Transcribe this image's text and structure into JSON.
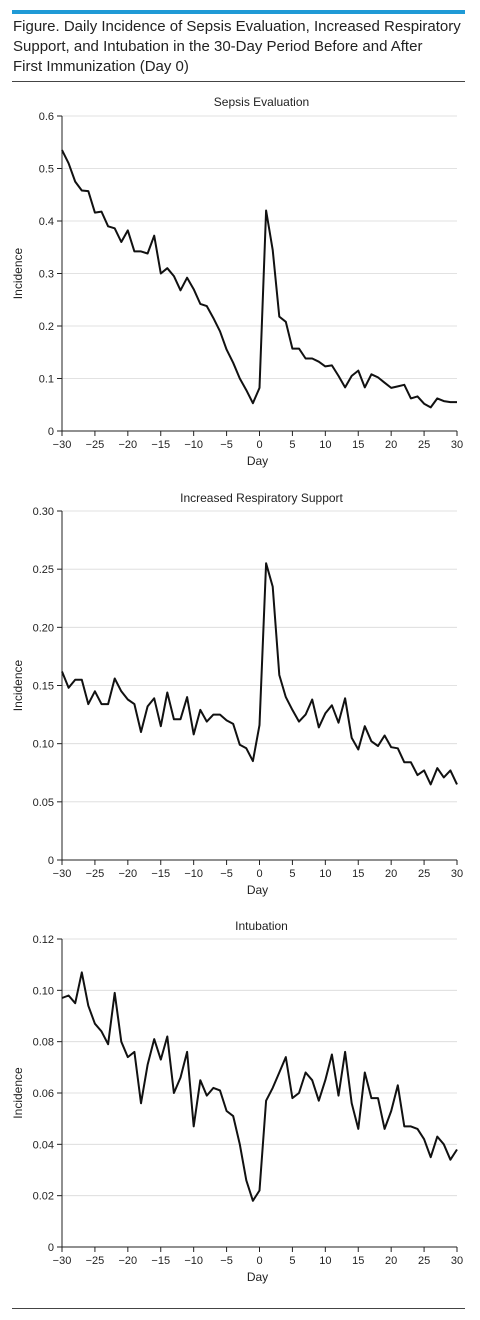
{
  "figure": {
    "title": "Figure. Daily Incidence of Sepsis Evaluation, Increased Respiratory Support, and Intubation in the 30-Day Period Before and After First Immunization (Day 0)",
    "title_lines": [
      "Figure. Daily Incidence of Sepsis Evaluation, Increased Respiratory",
      "Support, and Intubation in the 30-Day Period Before and After",
      "First Immunization (Day 0)"
    ]
  },
  "chart_data": [
    {
      "type": "line",
      "title": "Sepsis Evaluation",
      "xlabel": "Day",
      "ylabel": "Incidence",
      "xlim": [
        -30,
        30
      ],
      "ylim": [
        0,
        0.6
      ],
      "xticks": [
        "−30",
        "−25",
        "−20",
        "−15",
        "−10",
        "−5",
        "0",
        "5",
        "10",
        "15",
        "20",
        "25",
        "30"
      ],
      "yticks": [
        "0",
        "0.1",
        "0.2",
        "0.3",
        "0.4",
        "0.5",
        "0.6"
      ],
      "grid": true,
      "x": [
        -30,
        -29,
        -28,
        -27,
        -26,
        -25,
        -24,
        -23,
        -22,
        -21,
        -20,
        -19,
        -18,
        -17,
        -16,
        -15,
        -14,
        -13,
        -12,
        -11,
        -10,
        -9,
        -8,
        -7,
        -6,
        -5,
        -4,
        -3,
        -2,
        -1,
        0,
        1,
        2,
        3,
        4,
        5,
        6,
        7,
        8,
        9,
        10,
        11,
        12,
        13,
        14,
        15,
        16,
        17,
        18,
        19,
        20,
        21,
        22,
        23,
        24,
        25,
        26,
        27,
        28,
        29,
        30
      ],
      "y": [
        0.535,
        0.51,
        0.475,
        0.458,
        0.457,
        0.416,
        0.418,
        0.39,
        0.386,
        0.36,
        0.382,
        0.342,
        0.342,
        0.338,
        0.372,
        0.3,
        0.31,
        0.295,
        0.268,
        0.292,
        0.27,
        0.242,
        0.238,
        0.215,
        0.19,
        0.155,
        0.13,
        0.1,
        0.078,
        0.053,
        0.082,
        0.42,
        0.345,
        0.218,
        0.208,
        0.157,
        0.157,
        0.138,
        0.138,
        0.132,
        0.123,
        0.125,
        0.105,
        0.083,
        0.105,
        0.115,
        0.083,
        0.108,
        0.102,
        0.092,
        0.082,
        0.085,
        0.088,
        0.062,
        0.066,
        0.052,
        0.045,
        0.062,
        0.057,
        0.055,
        0.055
      ]
    },
    {
      "type": "line",
      "title": "Increased Respiratory Support",
      "xlabel": "Day",
      "ylabel": "Incidence",
      "xlim": [
        -30,
        30
      ],
      "ylim": [
        0,
        0.3
      ],
      "xticks": [
        "−30",
        "−25",
        "−20",
        "−15",
        "−10",
        "−5",
        "0",
        "5",
        "10",
        "15",
        "20",
        "25",
        "30"
      ],
      "yticks": [
        "0",
        "0.05",
        "0.10",
        "0.15",
        "0.20",
        "0.25",
        "0.30"
      ],
      "grid": true,
      "x": [
        -30,
        -29,
        -28,
        -27,
        -26,
        -25,
        -24,
        -23,
        -22,
        -21,
        -20,
        -19,
        -18,
        -17,
        -16,
        -15,
        -14,
        -13,
        -12,
        -11,
        -10,
        -9,
        -8,
        -7,
        -6,
        -5,
        -4,
        -3,
        -2,
        -1,
        0,
        1,
        2,
        3,
        4,
        5,
        6,
        7,
        8,
        9,
        10,
        11,
        12,
        13,
        14,
        15,
        16,
        17,
        18,
        19,
        20,
        21,
        22,
        23,
        24,
        25,
        26,
        27,
        28,
        29,
        30
      ],
      "y": [
        0.162,
        0.148,
        0.155,
        0.155,
        0.134,
        0.145,
        0.134,
        0.134,
        0.156,
        0.145,
        0.138,
        0.134,
        0.11,
        0.132,
        0.139,
        0.115,
        0.144,
        0.121,
        0.121,
        0.14,
        0.108,
        0.129,
        0.119,
        0.125,
        0.125,
        0.12,
        0.117,
        0.099,
        0.096,
        0.085,
        0.116,
        0.255,
        0.235,
        0.159,
        0.14,
        0.129,
        0.119,
        0.125,
        0.138,
        0.114,
        0.126,
        0.133,
        0.118,
        0.139,
        0.105,
        0.095,
        0.115,
        0.102,
        0.098,
        0.107,
        0.097,
        0.096,
        0.084,
        0.084,
        0.073,
        0.077,
        0.065,
        0.079,
        0.071,
        0.077,
        0.065
      ]
    },
    {
      "type": "line",
      "title": "Intubation",
      "xlabel": "Day",
      "ylabel": "Incidence",
      "xlim": [
        -30,
        30
      ],
      "ylim": [
        0,
        0.12
      ],
      "xticks": [
        "−30",
        "−25",
        "−20",
        "−15",
        "−10",
        "−5",
        "0",
        "5",
        "10",
        "15",
        "20",
        "25",
        "30"
      ],
      "yticks": [
        "0",
        "0.02",
        "0.04",
        "0.06",
        "0.08",
        "0.10",
        "0.12"
      ],
      "grid": true,
      "x": [
        -30,
        -29,
        -28,
        -27,
        -26,
        -25,
        -24,
        -23,
        -22,
        -21,
        -20,
        -19,
        -18,
        -17,
        -16,
        -15,
        -14,
        -13,
        -12,
        -11,
        -10,
        -9,
        -8,
        -7,
        -6,
        -5,
        -4,
        -3,
        -2,
        -1,
        0,
        1,
        2,
        3,
        4,
        5,
        6,
        7,
        8,
        9,
        10,
        11,
        12,
        13,
        14,
        15,
        16,
        17,
        18,
        19,
        20,
        21,
        22,
        23,
        24,
        25,
        26,
        27,
        28,
        29,
        30
      ],
      "y": [
        0.097,
        0.098,
        0.095,
        0.107,
        0.094,
        0.087,
        0.084,
        0.079,
        0.099,
        0.08,
        0.074,
        0.076,
        0.056,
        0.071,
        0.081,
        0.073,
        0.082,
        0.06,
        0.066,
        0.076,
        0.047,
        0.065,
        0.059,
        0.062,
        0.061,
        0.053,
        0.051,
        0.04,
        0.026,
        0.018,
        0.022,
        0.057,
        0.062,
        0.068,
        0.074,
        0.058,
        0.06,
        0.068,
        0.065,
        0.057,
        0.065,
        0.075,
        0.059,
        0.076,
        0.056,
        0.046,
        0.068,
        0.058,
        0.058,
        0.046,
        0.053,
        0.063,
        0.047,
        0.047,
        0.046,
        0.042,
        0.035,
        0.043,
        0.04,
        0.034,
        0.038
      ]
    }
  ]
}
